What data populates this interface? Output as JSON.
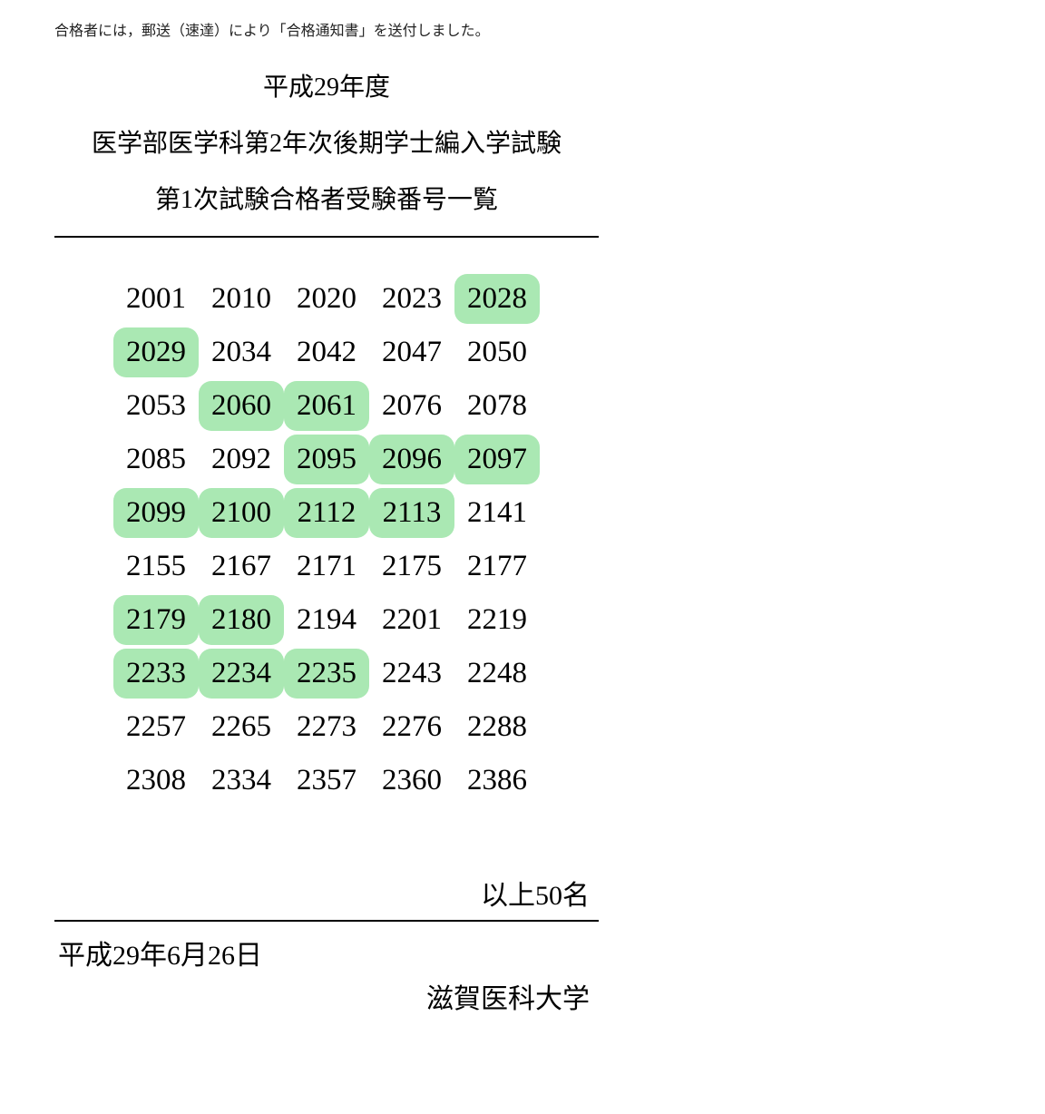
{
  "notice": "合格者には，郵送（速達）により「合格通知書」を送付しました。",
  "header": {
    "year": "平成29年度",
    "line1": "医学部医学科第2年次後期学士編入学試験",
    "line2": "第1次試験合格者受験番号一覧"
  },
  "table": {
    "columns": 5,
    "font_size": 33,
    "text_color": "#000000",
    "background_color": "#ffffff",
    "highlight_color": "#aae8b3",
    "highlight_radius": 14,
    "rows": [
      [
        {
          "v": "2001",
          "h": false
        },
        {
          "v": "2010",
          "h": false
        },
        {
          "v": "2020",
          "h": false
        },
        {
          "v": "2023",
          "h": false
        },
        {
          "v": "2028",
          "h": true
        }
      ],
      [
        {
          "v": "2029",
          "h": true
        },
        {
          "v": "2034",
          "h": false
        },
        {
          "v": "2042",
          "h": false
        },
        {
          "v": "2047",
          "h": false
        },
        {
          "v": "2050",
          "h": false
        }
      ],
      [
        {
          "v": "2053",
          "h": false
        },
        {
          "v": "2060",
          "h": true
        },
        {
          "v": "2061",
          "h": true
        },
        {
          "v": "2076",
          "h": false
        },
        {
          "v": "2078",
          "h": false
        }
      ],
      [
        {
          "v": "2085",
          "h": false
        },
        {
          "v": "2092",
          "h": false
        },
        {
          "v": "2095",
          "h": true
        },
        {
          "v": "2096",
          "h": true
        },
        {
          "v": "2097",
          "h": true
        }
      ],
      [
        {
          "v": "2099",
          "h": true
        },
        {
          "v": "2100",
          "h": true
        },
        {
          "v": "2112",
          "h": true
        },
        {
          "v": "2113",
          "h": true
        },
        {
          "v": "2141",
          "h": false
        }
      ],
      [
        {
          "v": "2155",
          "h": false
        },
        {
          "v": "2167",
          "h": false
        },
        {
          "v": "2171",
          "h": false
        },
        {
          "v": "2175",
          "h": false
        },
        {
          "v": "2177",
          "h": false
        }
      ],
      [
        {
          "v": "2179",
          "h": true
        },
        {
          "v": "2180",
          "h": true
        },
        {
          "v": "2194",
          "h": false
        },
        {
          "v": "2201",
          "h": false
        },
        {
          "v": "2219",
          "h": false
        }
      ],
      [
        {
          "v": "2233",
          "h": true
        },
        {
          "v": "2234",
          "h": true
        },
        {
          "v": "2235",
          "h": true
        },
        {
          "v": "2243",
          "h": false
        },
        {
          "v": "2248",
          "h": false
        }
      ],
      [
        {
          "v": "2257",
          "h": false
        },
        {
          "v": "2265",
          "h": false
        },
        {
          "v": "2273",
          "h": false
        },
        {
          "v": "2276",
          "h": false
        },
        {
          "v": "2288",
          "h": false
        }
      ],
      [
        {
          "v": "2308",
          "h": false
        },
        {
          "v": "2334",
          "h": false
        },
        {
          "v": "2357",
          "h": false
        },
        {
          "v": "2360",
          "h": false
        },
        {
          "v": "2386",
          "h": false
        }
      ]
    ]
  },
  "count_line": "以上50名",
  "date": "平成29年6月26日",
  "university": "滋賀医科大学",
  "rule_color": "#000000"
}
